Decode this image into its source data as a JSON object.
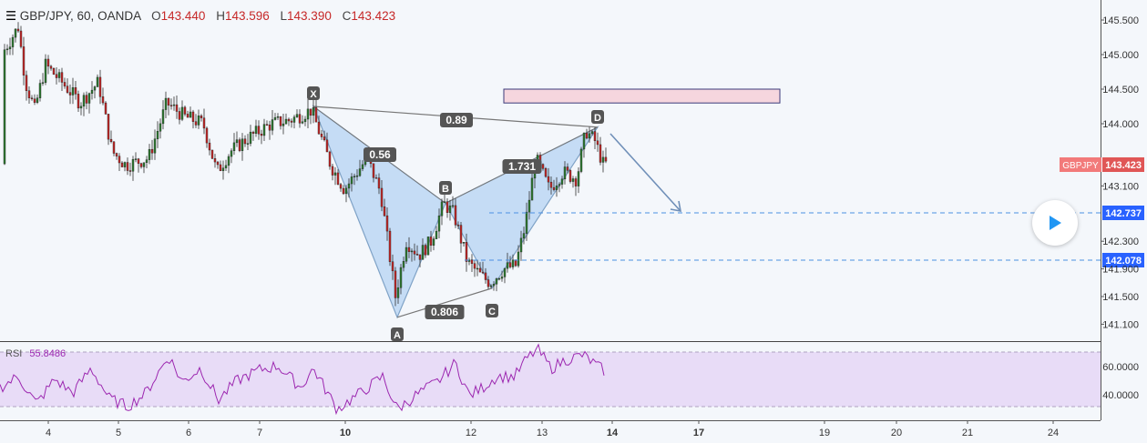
{
  "header": {
    "symbol": "GBP/JPY, 60, OANDA",
    "open_label": "O",
    "open": "143.440",
    "high_label": "H",
    "high": "143.596",
    "low_label": "L",
    "low": "143.390",
    "close_label": "C",
    "close": "143.423"
  },
  "rsi": {
    "label": "RSI",
    "value": "55.8486"
  },
  "ticker_badge": "GBPJPY",
  "colors": {
    "up": "#26a69a",
    "down": "#ef5350",
    "pattern": "#7fa2c6",
    "rsi": "#9c27b0",
    "accent": "#4a90e2"
  },
  "chart_data": [
    {
      "type": "candlestick",
      "price_axis_ticks": [
        "145.500",
        "145.000",
        "144.500",
        "144.000",
        "143.100",
        "142.300",
        "141.900",
        "141.500",
        "141.100"
      ],
      "time_axis_ticks": [
        "4",
        "5",
        "6",
        "7",
        "10",
        "12",
        "13",
        "14",
        "17",
        "19",
        "20",
        "21",
        "24"
      ],
      "last_price": "143.423",
      "levels": [
        "142.737",
        "142.078"
      ],
      "harmonic_pattern": {
        "points": [
          {
            "label": "X",
            "price": 144.25
          },
          {
            "label": "A",
            "price": 141.2
          },
          {
            "label": "B",
            "price": 142.85
          },
          {
            "label": "C",
            "price": 141.62
          },
          {
            "label": "D",
            "price": 143.95
          }
        ],
        "ratios": [
          "0.89",
          "0.56",
          "1.731",
          "0.806"
        ]
      },
      "target_zone": {
        "from": 144.3,
        "to": 144.5
      }
    },
    {
      "type": "line",
      "name": "RSI",
      "current": "55.8486",
      "ticks": [
        "60.0000",
        "40.0000"
      ],
      "bands": [
        70,
        30
      ]
    }
  ]
}
